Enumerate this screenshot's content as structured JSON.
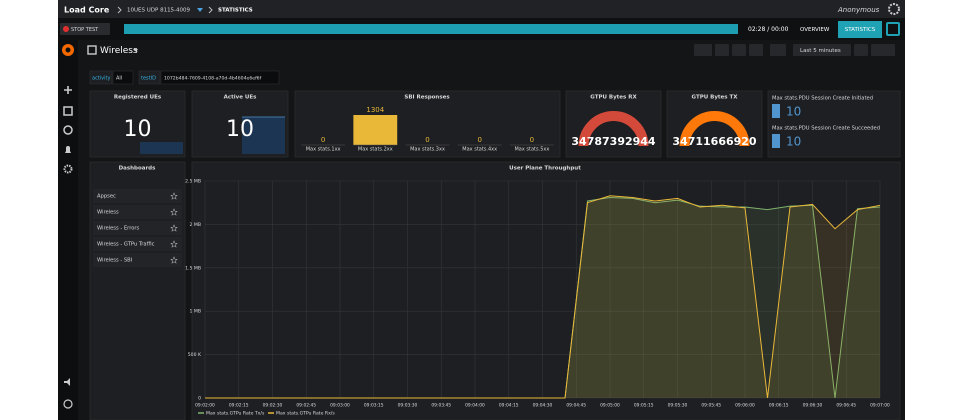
{
  "app": {
    "title": "Load Core",
    "breadcrumb": [
      "10UES UDP 8115-4009",
      "STATISTICS"
    ],
    "user": "Anonymous"
  },
  "toolbar": {
    "stop": "STOP TEST",
    "elapsed": "02:28 / 00:00",
    "tabs": [
      "OVERVIEW",
      "STATISTICS"
    ]
  },
  "dashboard": {
    "title": "Wireless",
    "time_range": "Last 5 minutes",
    "variables": [
      {
        "name": "activity",
        "value": "All"
      },
      {
        "name": "testID",
        "value": "1072b484-7609-4108-a70d-4b4604e6ef6f"
      }
    ]
  },
  "panels": {
    "registered_ues": {
      "title": "Registered UEs",
      "value": 10
    },
    "active_ues": {
      "title": "Active UEs",
      "value": 10
    },
    "gtpu_rx": {
      "title": "GTPU Bytes RX",
      "value": 34787392944,
      "color": "#d44a3a"
    },
    "gtpu_tx": {
      "title": "GTPU Bytes TX",
      "value": 34711666920,
      "color": "#ff780a"
    },
    "pdu": {
      "color": "#5195ce",
      "items": [
        {
          "label": "Max stats.PDU Session Create Initiated",
          "value": 10
        },
        {
          "label": "Max stats.PDU Session Create Succeeded",
          "value": 10
        }
      ]
    }
  },
  "dashboards": {
    "title": "Dashboards",
    "items": [
      "Appsec",
      "Wireless",
      "Wireless - Errors",
      "Wireless - GTPu Traffic",
      "Wireless - SBI"
    ]
  },
  "chart_data": [
    {
      "type": "bar",
      "title": "SBI Responses",
      "categories": [
        "Max stats.1xx",
        "Max stats.2xx",
        "Max stats.3xx",
        "Max stats.4xx",
        "Max stats.5xx"
      ],
      "values": [
        0,
        1304,
        0,
        0,
        0
      ],
      "color": "#eab839"
    },
    {
      "type": "line",
      "title": "User Plane Throughput",
      "x": [
        0,
        10,
        20,
        30,
        40,
        50,
        60,
        70,
        80,
        90,
        100,
        110,
        120,
        130,
        140,
        150,
        160,
        170,
        180,
        190,
        200,
        210,
        220,
        230,
        240,
        250,
        260,
        270,
        280,
        290,
        300
      ],
      "series": [
        {
          "name": "Max stats.GTPu Rate Tx/s",
          "color": "#7eb26d",
          "values": [
            0,
            0,
            0,
            0,
            0,
            0,
            0,
            0,
            0,
            0,
            0,
            0,
            0,
            0,
            0,
            0,
            0,
            2.27,
            2.31,
            2.3,
            2.25,
            2.28,
            2.21,
            2.2,
            2.2,
            2.17,
            2.21,
            2.22,
            0,
            2.18,
            2.2
          ]
        },
        {
          "name": "Max stats.GTPu Rate Rx/s",
          "color": "#eab839",
          "values": [
            0,
            0,
            0,
            0,
            0,
            0,
            0,
            0,
            0,
            0,
            0,
            0,
            0,
            0,
            0,
            0,
            0,
            2.25,
            2.33,
            2.31,
            2.27,
            2.3,
            2.2,
            2.22,
            2.19,
            0,
            2.2,
            2.23,
            1.95,
            2.17,
            2.22
          ]
        }
      ],
      "xlim": [
        0,
        300
      ],
      "xticks": [
        {
          "value": 0,
          "label": "09:02:00"
        },
        {
          "value": 15,
          "label": "09:02:15"
        },
        {
          "value": 30,
          "label": "09:02:30"
        },
        {
          "value": 45,
          "label": "09:02:45"
        },
        {
          "value": 60,
          "label": "09:03:00"
        },
        {
          "value": 75,
          "label": "09:03:15"
        },
        {
          "value": 90,
          "label": "09:03:30"
        },
        {
          "value": 105,
          "label": "09:03:45"
        },
        {
          "value": 120,
          "label": "09:04:00"
        },
        {
          "value": 135,
          "label": "09:04:15"
        },
        {
          "value": 150,
          "label": "09:04:30"
        },
        {
          "value": 165,
          "label": "09:04:45"
        },
        {
          "value": 180,
          "label": "09:05:00"
        },
        {
          "value": 195,
          "label": "09:05:15"
        },
        {
          "value": 210,
          "label": "09:05:30"
        },
        {
          "value": 225,
          "label": "09:05:45"
        },
        {
          "value": 240,
          "label": "09:06:00"
        },
        {
          "value": 255,
          "label": "09:06:15"
        },
        {
          "value": 270,
          "label": "09:06:30"
        },
        {
          "value": 285,
          "label": "09:06:45"
        },
        {
          "value": 300,
          "label": "09:07:00"
        }
      ],
      "ylim": [
        0,
        2.5
      ],
      "yticks": [
        0,
        {
          "value": 0.5,
          "label": "500 K"
        },
        {
          "value": 1,
          "label": "1 MB"
        },
        {
          "value": 1.5,
          "label": "1.5 MB"
        },
        {
          "value": 2,
          "label": "2 MB"
        },
        {
          "value": 2.5,
          "label": "2.5 MB"
        }
      ],
      "grid": true
    }
  ]
}
